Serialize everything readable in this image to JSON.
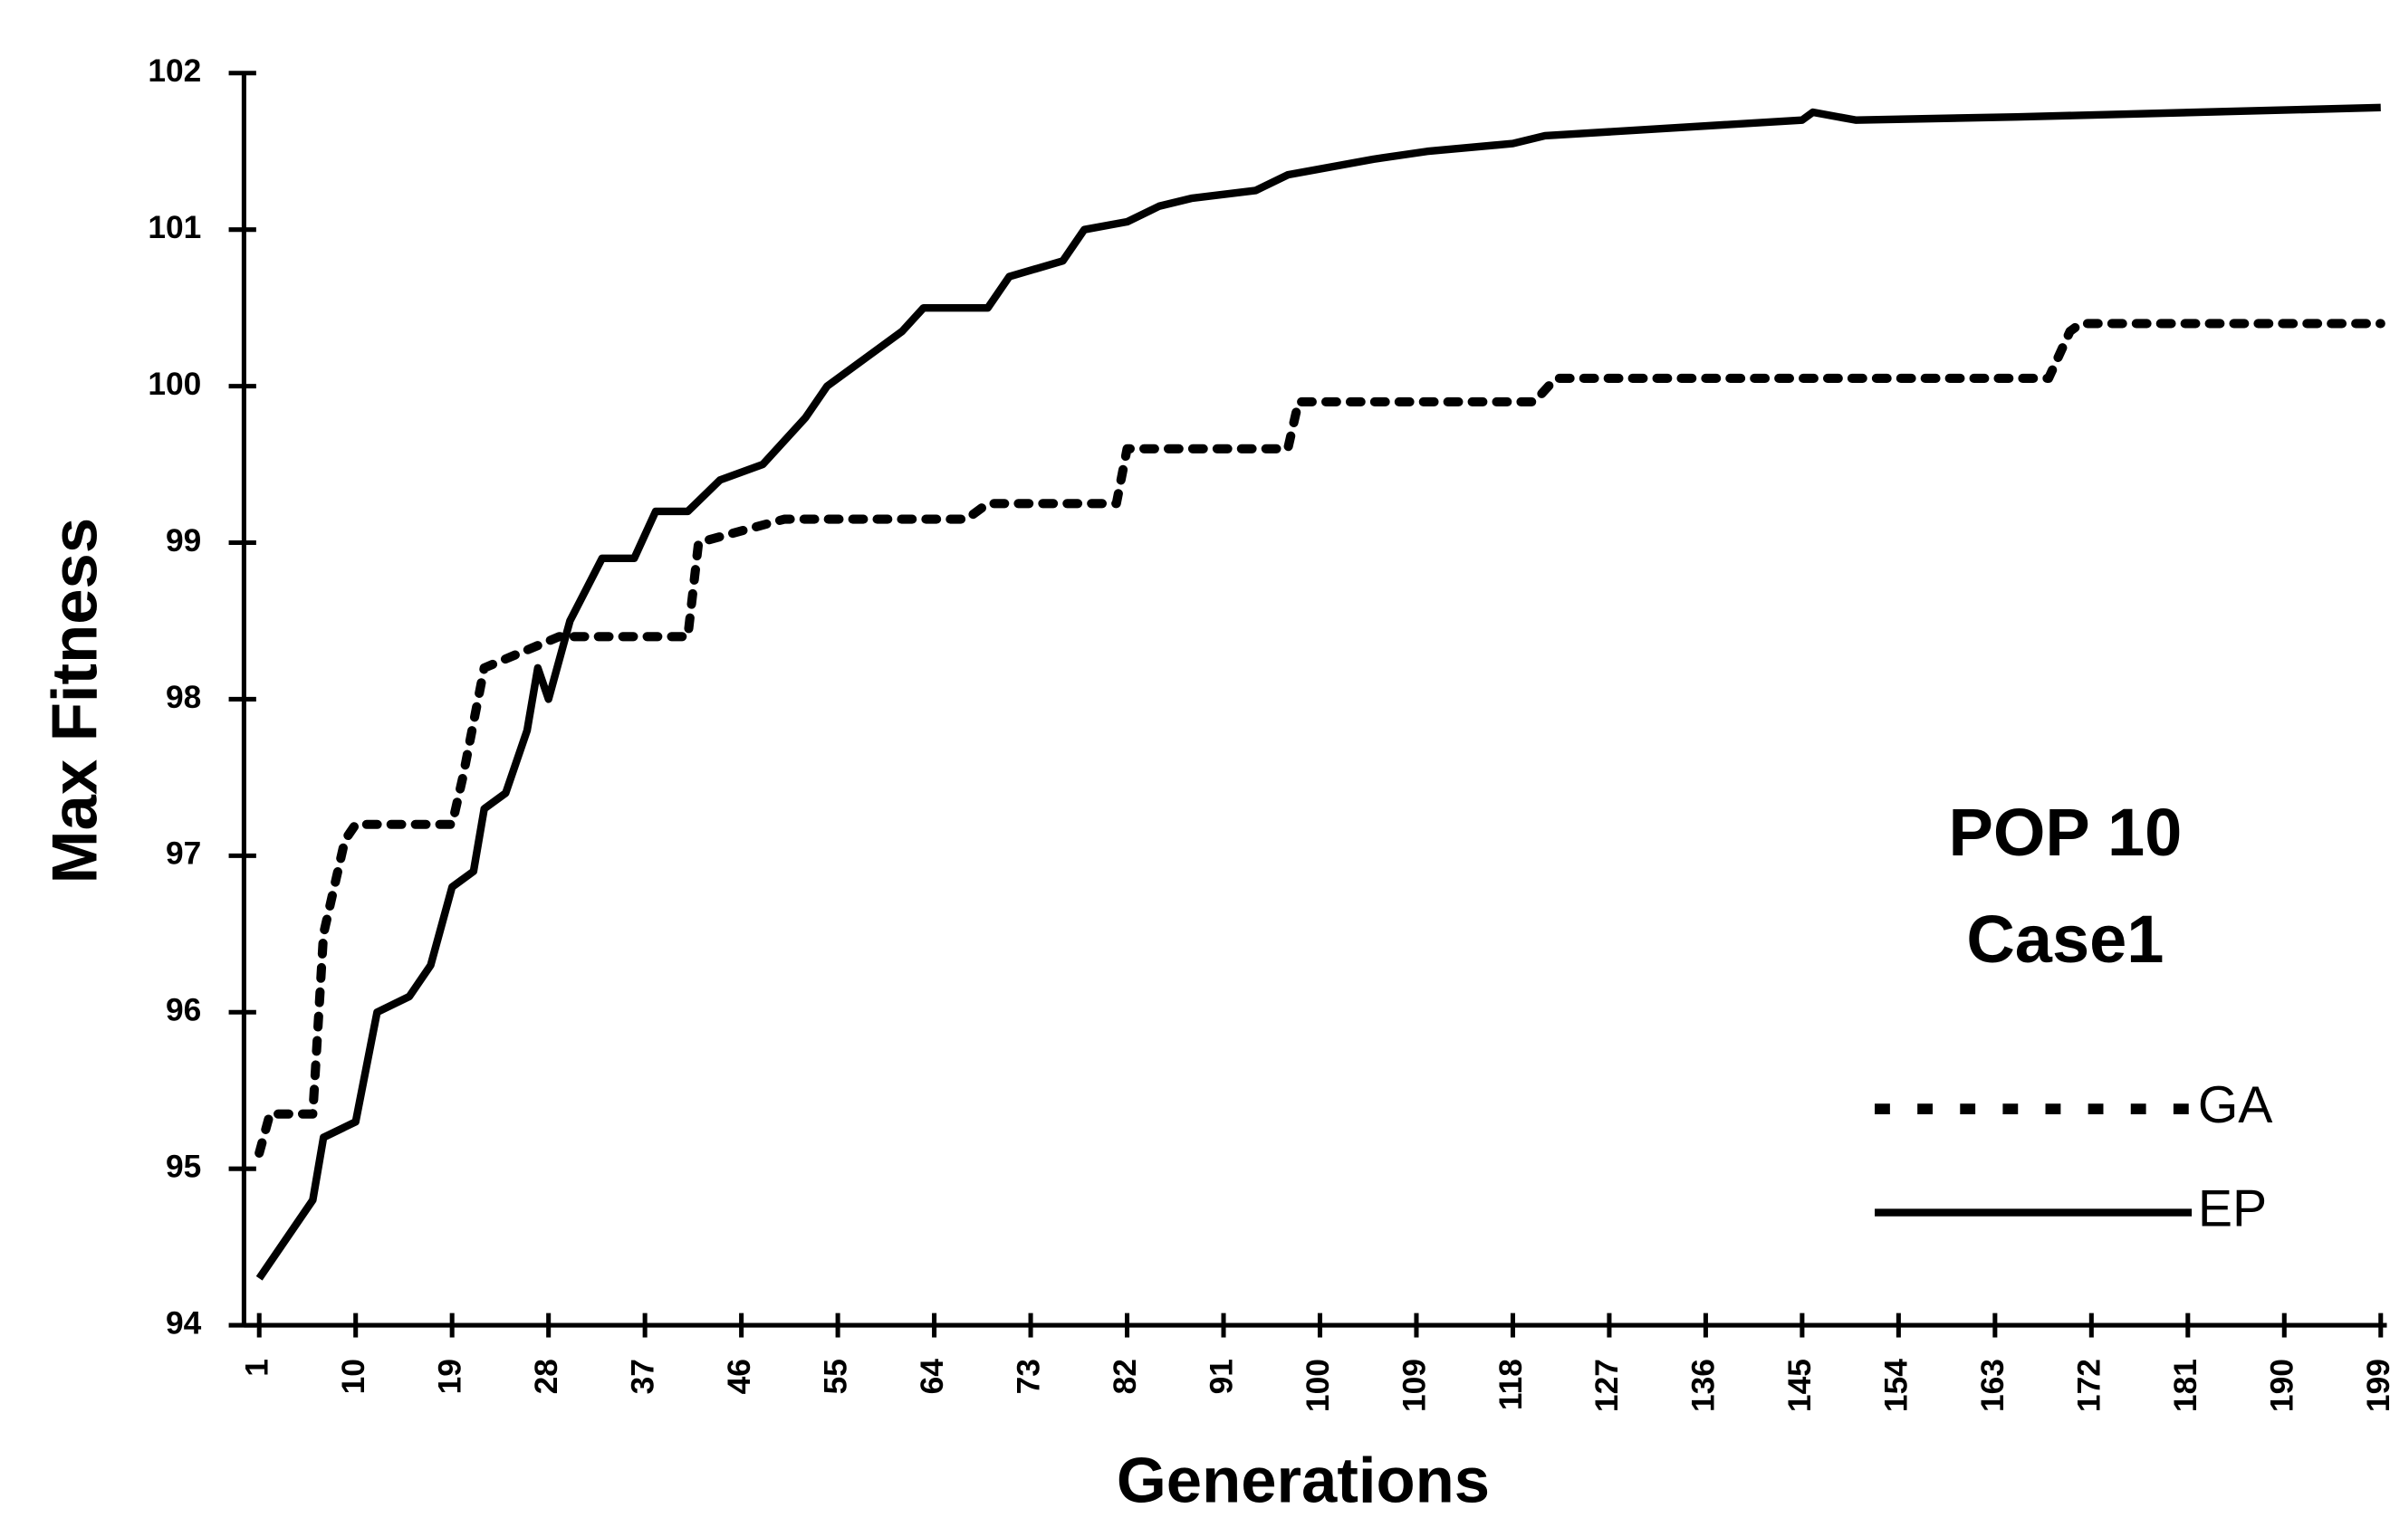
{
  "chart_data": {
    "type": "line",
    "notes": [
      "POP 10",
      "Case1"
    ],
    "x_label": "Generations",
    "y_label": "Max Fitness",
    "xlim": [
      1,
      199
    ],
    "xticks": [
      1,
      10,
      19,
      28,
      37,
      46,
      55,
      64,
      73,
      82,
      91,
      100,
      109,
      118,
      127,
      136,
      145,
      154,
      163,
      172,
      181,
      190,
      199
    ],
    "ylim": [
      94,
      102
    ],
    "yticks": [
      94,
      95,
      96,
      97,
      98,
      99,
      100,
      101,
      102
    ],
    "series": [
      {
        "name": "GA",
        "color": "#000000",
        "dashed": true,
        "x": [
          1,
          2,
          6,
          7,
          9,
          10,
          19,
          20,
          22,
          29,
          41,
          42,
          50,
          67,
          69,
          81,
          82,
          97,
          98,
          120,
          122,
          168,
          170,
          171,
          199
        ],
        "values": [
          95.1,
          95.35,
          95.35,
          96.5,
          97.1,
          97.2,
          97.2,
          97.5,
          98.2,
          98.4,
          98.4,
          99.0,
          99.15,
          99.15,
          99.25,
          99.25,
          99.6,
          99.6,
          99.9,
          99.9,
          100.05,
          100.05,
          100.35,
          100.4,
          100.4
        ]
      },
      {
        "name": "EP",
        "color": "#000000",
        "dashed": false,
        "x": [
          1,
          3,
          6,
          7,
          10,
          12,
          15,
          17,
          19,
          21,
          22,
          24,
          26,
          27,
          28,
          30,
          33,
          36,
          38,
          41,
          44,
          48,
          52,
          54,
          58,
          61,
          63,
          69,
          71,
          76,
          78,
          82,
          85,
          88,
          94,
          97,
          101,
          105,
          110,
          118,
          121,
          145,
          146,
          150,
          165,
          199
        ],
        "values": [
          94.3,
          94.5,
          94.8,
          95.2,
          95.3,
          96.0,
          96.1,
          96.3,
          96.8,
          96.9,
          97.3,
          97.4,
          97.8,
          98.2,
          98.0,
          98.5,
          98.9,
          98.9,
          99.2,
          99.2,
          99.4,
          99.5,
          99.8,
          100.0,
          100.2,
          100.35,
          100.5,
          100.5,
          100.7,
          100.8,
          101.0,
          101.05,
          101.15,
          101.2,
          101.25,
          101.35,
          101.4,
          101.45,
          101.5,
          101.55,
          101.6,
          101.7,
          101.75,
          101.7,
          101.72,
          101.78
        ]
      }
    ]
  }
}
